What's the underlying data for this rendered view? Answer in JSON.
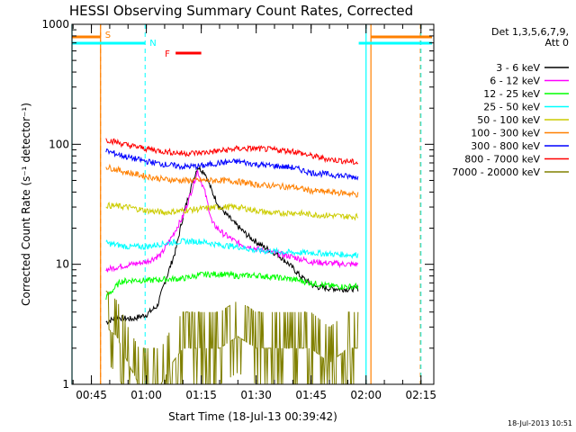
{
  "chart_data": {
    "type": "line",
    "title": "HESSI Observing Summary Count Rates, Corrected",
    "xlabel": "Start Time (18-Jul-13 00:39:42)",
    "ylabel": "Corrected Count Rate (s⁻¹ detector⁻¹)",
    "yscale": "log",
    "ylim": [
      1,
      1000
    ],
    "xlim": [
      "00:39:42",
      "02:18:30"
    ],
    "x_tick_labels": [
      "00:45",
      "01:00",
      "01:15",
      "01:30",
      "01:45",
      "02:00",
      "02:15"
    ],
    "y_tick_labels": [
      "1",
      "10",
      "100",
      "1000"
    ],
    "legend_header": [
      "Det 1,3,5,6,7,9,",
      "Att 0"
    ],
    "legend_position": "right",
    "timestamp": "18-Jul-2013 10:51",
    "series": [
      {
        "name": "3 - 6 keV",
        "color": "#000000",
        "x": [
          "00:49:00",
          "00:52:00",
          "00:56:00",
          "01:00:00",
          "01:03:00",
          "01:05:00",
          "01:08:00",
          "01:10:00",
          "01:12:00",
          "01:14:00",
          "01:16:00",
          "01:18:00",
          "01:20:00",
          "01:24:00",
          "01:28:00",
          "01:32:00",
          "01:36:00",
          "01:39:00",
          "01:42:00",
          "01:46:00",
          "01:50:00",
          "01:55:00",
          "01:58:00"
        ],
        "values": [
          3.3,
          3.6,
          3.5,
          3.8,
          4.5,
          7,
          13,
          25,
          42,
          65,
          58,
          40,
          30,
          22,
          17,
          14,
          12,
          10,
          8,
          6.5,
          6.3,
          6.2,
          6.3
        ]
      },
      {
        "name": "6 - 12 keV",
        "color": "#ff00ff",
        "x": [
          "00:49:00",
          "00:52:00",
          "00:56:00",
          "01:00:00",
          "01:04:00",
          "01:07:00",
          "01:10:00",
          "01:12:00",
          "01:14:00",
          "01:16:00",
          "01:18:00",
          "01:21:00",
          "01:25:00",
          "01:30:00",
          "01:35:00",
          "01:40:00",
          "01:45:00",
          "01:50:00",
          "01:55:00",
          "01:58:00"
        ],
        "values": [
          9,
          9.5,
          10,
          10.5,
          12,
          17,
          25,
          38,
          60,
          40,
          22,
          18,
          15,
          13.5,
          12.5,
          11.5,
          10.5,
          10.2,
          10,
          10
        ]
      },
      {
        "name": "12 - 25 keV",
        "color": "#00ff00",
        "x": [
          "00:49:00",
          "00:53:00",
          "00:57:00",
          "01:00:00",
          "01:05:00",
          "01:10:00",
          "01:15:00",
          "01:20:00",
          "01:25:00",
          "01:30:00",
          "01:35:00",
          "01:40:00",
          "01:45:00",
          "01:50:00",
          "01:55:00",
          "01:58:00"
        ],
        "values": [
          5.3,
          7.2,
          7.4,
          7.3,
          7.5,
          7.6,
          8.2,
          8.3,
          8.0,
          8.1,
          7.8,
          7.5,
          7.0,
          6.6,
          6.5,
          6.6
        ]
      },
      {
        "name": "25 - 50 keV",
        "color": "#00ffff",
        "x": [
          "00:49:00",
          "00:55:00",
          "01:00:00",
          "01:05:00",
          "01:10:00",
          "01:15:00",
          "01:20:00",
          "01:25:00",
          "01:30:00",
          "01:35:00",
          "01:40:00",
          "01:45:00",
          "01:50:00",
          "01:55:00",
          "01:58:00"
        ],
        "values": [
          15,
          14,
          14,
          15,
          15.5,
          15.5,
          14.5,
          14,
          13,
          12.8,
          12.5,
          12.5,
          12.2,
          12,
          12
        ]
      },
      {
        "name": "50 - 100 keV",
        "color": "#cccc00",
        "x": [
          "00:49:00",
          "00:55:00",
          "01:00:00",
          "01:05:00",
          "01:10:00",
          "01:15:00",
          "01:20:00",
          "01:25:00",
          "01:30:00",
          "01:35:00",
          "01:40:00",
          "01:45:00",
          "01:50:00",
          "01:55:00",
          "01:58:00"
        ],
        "values": [
          31,
          30,
          28,
          27,
          28,
          29,
          30,
          30,
          28,
          26.5,
          27,
          26,
          25.5,
          25,
          25
        ]
      },
      {
        "name": "100 - 300 keV",
        "color": "#ff8000",
        "x": [
          "00:49:00",
          "00:55:00",
          "01:00:00",
          "01:05:00",
          "01:10:00",
          "01:15:00",
          "01:20:00",
          "01:25:00",
          "01:30:00",
          "01:35:00",
          "01:40:00",
          "01:45:00",
          "01:50:00",
          "01:55:00",
          "01:58:00"
        ],
        "values": [
          65,
          58,
          54,
          51,
          50,
          50,
          50,
          49,
          46,
          45,
          44,
          41,
          40,
          39,
          38
        ]
      },
      {
        "name": "300 - 800 keV",
        "color": "#0000ff",
        "x": [
          "00:49:00",
          "00:55:00",
          "01:00:00",
          "01:05:00",
          "01:10:00",
          "01:15:00",
          "01:20:00",
          "01:25:00",
          "01:30:00",
          "01:35:00",
          "01:40:00",
          "01:45:00",
          "01:50:00",
          "01:55:00",
          "01:58:00"
        ],
        "values": [
          88,
          78,
          72,
          68,
          65,
          66,
          70,
          72,
          68,
          66,
          64,
          58,
          56,
          54,
          53
        ]
      },
      {
        "name": "800 - 7000 keV",
        "color": "#ff0000",
        "x": [
          "00:49:00",
          "00:55:00",
          "01:00:00",
          "01:05:00",
          "01:10:00",
          "01:15:00",
          "01:20:00",
          "01:25:00",
          "01:30:00",
          "01:35:00",
          "01:40:00",
          "01:45:00",
          "01:50:00",
          "01:55:00",
          "01:58:00"
        ],
        "values": [
          110,
          98,
          92,
          87,
          84,
          85,
          88,
          92,
          92,
          90,
          88,
          80,
          75,
          72,
          70
        ]
      },
      {
        "name": "7000 - 20000 keV",
        "color": "#808000",
        "x": [
          "00:49:00",
          "00:52:00",
          "00:55:00",
          "00:58:00",
          "01:01:00",
          "01:04:00",
          "01:07:00",
          "01:10:00",
          "01:15:00",
          "01:20:00",
          "01:25:00",
          "01:30:00",
          "01:35:00",
          "01:40:00",
          "01:45:00",
          "01:50:00",
          "01:55:00",
          "01:58:00"
        ],
        "values": [
          3,
          2.5,
          1.5,
          1,
          1,
          1,
          1.5,
          2,
          2,
          2,
          2.5,
          2,
          2,
          2,
          2,
          1.5,
          2,
          2
        ]
      }
    ],
    "markers": {
      "S": {
        "label": "S",
        "color": "#ff8000",
        "times": [
          "00:47:30",
          "02:14:50"
        ]
      },
      "N": {
        "label": "N",
        "color": "#00ffff",
        "times": [
          "00:59:40",
          "02:15:00"
        ]
      },
      "F": {
        "label": "F",
        "color": "#ff0000",
        "start": "01:08:00",
        "end": "01:15:00",
        "value": 700
      }
    },
    "data_gap_boundaries": {
      "color_s": "#ff8000",
      "color_n": "#00ffff",
      "times_s": [
        "00:47:30",
        "02:01:20"
      ],
      "times_n": [
        "00:39:42",
        "02:00:00"
      ]
    }
  }
}
